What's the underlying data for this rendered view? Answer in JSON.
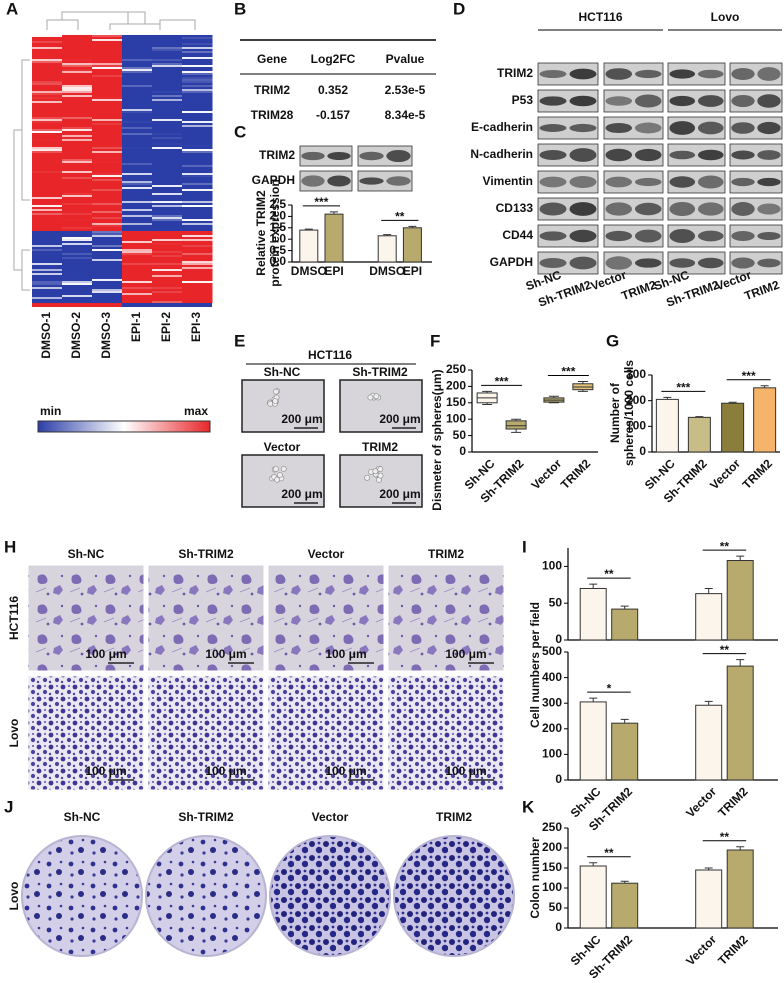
{
  "panel_labels": [
    "A",
    "B",
    "C",
    "D",
    "E",
    "F",
    "G",
    "H",
    "I",
    "J",
    "K"
  ],
  "heatmap": {
    "samples": [
      "DMSO-1",
      "DMSO-2",
      "DMSO-3",
      "EPI-1",
      "EPI-2",
      "EPI-3"
    ],
    "legend": {
      "min": "min",
      "max": "max"
    }
  },
  "table": {
    "header": [
      "Gene",
      "Log2FC",
      "Pvalue"
    ],
    "rows": [
      [
        "TRIM2",
        "0.352",
        "2.53e-5"
      ],
      [
        "TRIM28",
        "-0.157",
        "8.34e-5"
      ]
    ]
  },
  "blot_c": {
    "rows": [
      "TRIM2",
      "GAPDH"
    ]
  },
  "blot_d": {
    "groups": [
      "HCT116",
      "Lovo"
    ],
    "rows": [
      "TRIM2",
      "P53",
      "E-cadherin",
      "N-cadherin",
      "Vimentin",
      "CD133",
      "CD44",
      "GAPDH"
    ],
    "lanes": [
      "Sh-NC",
      "Sh-TRIM2",
      "Vector",
      "TRIM2",
      "Sh-NC",
      "Sh-TRIM2",
      "Vector",
      "TRIM2"
    ]
  },
  "spheres": {
    "title": "HCT116",
    "images": [
      "Sh-NC",
      "Sh-TRIM2",
      "Vector",
      "TRIM2"
    ],
    "scale_bar": "200 μm"
  },
  "transwell": {
    "columns": [
      "Sh-NC",
      "Sh-TRIM2",
      "Vector",
      "TRIM2"
    ],
    "rows": [
      "HCT116",
      "Lovo"
    ],
    "scale_bar": "100 μm"
  },
  "colony": {
    "columns": [
      "Sh-NC",
      "Sh-TRIM2",
      "Vector",
      "TRIM2"
    ],
    "row": "Lovo"
  },
  "chart_data": [
    {
      "type": "bar",
      "ylabel": [
        "Relative TRIM2",
        "protein expression"
      ],
      "categories": [
        "DMSO",
        "EPI",
        "DMSO",
        "EPI"
      ],
      "values": [
        1.4,
        2.1,
        1.15,
        1.5
      ],
      "errors": [
        0.04,
        0.1,
        0.05,
        0.06
      ],
      "colors": [
        "#fbf5ec",
        "#b7aa6c",
        "#fbf5ec",
        "#b7aa6c"
      ],
      "ylim": [
        0,
        2.5
      ],
      "yticks": [
        {
          "value": 0,
          "label": "0.0"
        },
        {
          "value": 0.5,
          "label": "0.5"
        },
        {
          "value": 1,
          "label": "1.0"
        },
        {
          "value": 1.5,
          "label": "1.5"
        },
        {
          "value": 2,
          "label": "2.0"
        },
        {
          "value": 2.5,
          "label": "2.5"
        }
      ],
      "significance": [
        "***",
        "**"
      ]
    },
    {
      "type": "box",
      "ylabel": [
        "Dismeter of spheres(μm)"
      ],
      "categories": [
        "Sh-NC",
        "Sh-TRIM2",
        "Vector",
        "TRIM2"
      ],
      "min": [
        145,
        60,
        150,
        185
      ],
      "q1": [
        150,
        70,
        152,
        190
      ],
      "median": [
        165,
        80,
        158,
        198
      ],
      "q3": [
        180,
        95,
        165,
        208
      ],
      "max": [
        185,
        100,
        170,
        215
      ],
      "colors": [
        "#fbf5ec",
        "#b7aa6c",
        "#b7aa6c",
        "#e3c27c"
      ],
      "ylim": [
        0,
        250
      ],
      "yticks": [
        0,
        50,
        100,
        150,
        200,
        250
      ],
      "significance": [
        "***",
        "***"
      ]
    },
    {
      "type": "bar",
      "ylabel": [
        "Number of",
        "spheres/1000 cells"
      ],
      "categories": [
        "Sh-NC",
        "Sh-TRIM2",
        "Vector",
        "TRIM2"
      ],
      "values": [
        205,
        135,
        190,
        250
      ],
      "errors": [
        8,
        3,
        4,
        8
      ],
      "colors": [
        "#fbf5ec",
        "#c8bd86",
        "#8b7d3a",
        "#f6b46a"
      ],
      "ylim": [
        0,
        300
      ],
      "yticks": [
        0,
        100,
        200,
        300
      ],
      "significance": [
        "***",
        "***"
      ]
    },
    {
      "type": "bar",
      "categories": [
        null,
        null,
        null,
        null
      ],
      "values": [
        70,
        42,
        63,
        108
      ],
      "errors": [
        6,
        4,
        7,
        6
      ],
      "colors": [
        "#fbf5ec",
        "#b7aa6c",
        "#fbf5ec",
        "#b7aa6c"
      ],
      "ylim": [
        0,
        125
      ],
      "yticks": [
        0,
        50,
        100
      ],
      "significance": [
        "**",
        "**"
      ]
    },
    {
      "type": "bar",
      "ylabel": [
        "Cell numbers per field"
      ],
      "categories": [
        "Sh-NC",
        "Sh-TRIM2",
        "Vector",
        "TRIM2"
      ],
      "values": [
        305,
        222,
        292,
        445
      ],
      "errors": [
        15,
        15,
        15,
        25
      ],
      "colors": [
        "#fbf5ec",
        "#b7aa6c",
        "#fbf5ec",
        "#b7aa6c"
      ],
      "ylim": [
        0,
        500
      ],
      "yticks": [
        0,
        100,
        200,
        300,
        400,
        500
      ],
      "significance": [
        "*",
        "**"
      ]
    },
    {
      "type": "bar",
      "ylabel": [
        "Colon number"
      ],
      "categories": [
        "Sh-NC",
        "Sh-TRIM2",
        "Vector",
        "TRIM2"
      ],
      "values": [
        155,
        112,
        145,
        195
      ],
      "errors": [
        8,
        5,
        5,
        8
      ],
      "colors": [
        "#fbf5ec",
        "#b7aa6c",
        "#fbf5ec",
        "#b7aa6c"
      ],
      "ylim": [
        0,
        250
      ],
      "yticks": [
        0,
        50,
        100,
        150,
        200,
        250
      ],
      "significance": [
        "**",
        "**"
      ]
    }
  ]
}
